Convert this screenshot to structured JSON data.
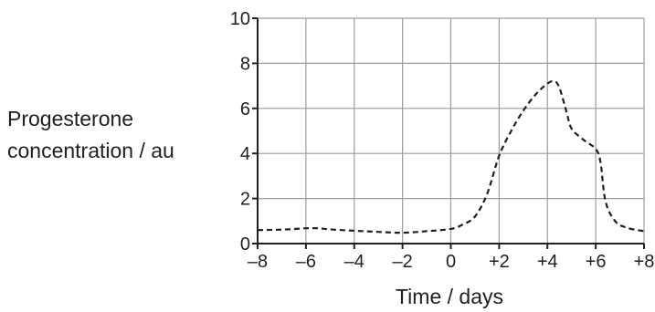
{
  "chart_data": {
    "type": "line",
    "title": "",
    "xlabel": "Time / days",
    "ylabel_lines": [
      "Progesterone",
      "concentration / au"
    ],
    "xlim": [
      -8,
      8
    ],
    "ylim": [
      0,
      10
    ],
    "x_ticks": [
      -8,
      -6,
      -4,
      -2,
      0,
      2,
      4,
      6,
      8
    ],
    "x_tick_labels": [
      "–8",
      "–6",
      "–4",
      "–2",
      "0",
      "+2",
      "+4",
      "+6",
      "+8"
    ],
    "y_ticks": [
      0,
      2,
      4,
      6,
      8,
      10
    ],
    "y_tick_labels": [
      "0",
      "2",
      "4",
      "6",
      "8",
      "10"
    ],
    "grid": true,
    "series": [
      {
        "line_style": "dashed",
        "color": "#231f20",
        "x": [
          -8,
          -7,
          -6,
          -5.5,
          -5,
          -4,
          -3,
          -2,
          -1,
          0,
          0.5,
          1,
          1.5,
          2,
          2.5,
          3,
          3.5,
          4,
          4.3,
          4.5,
          4.8,
          5,
          5.5,
          6,
          6.2,
          6.4,
          6.8,
          7.3,
          8
        ],
        "y": [
          0.6,
          0.62,
          0.68,
          0.68,
          0.63,
          0.57,
          0.52,
          0.48,
          0.55,
          0.65,
          0.85,
          1.2,
          2.2,
          3.9,
          5.0,
          5.9,
          6.6,
          7.1,
          7.2,
          6.9,
          5.8,
          5.1,
          4.6,
          4.2,
          3.6,
          1.9,
          1.0,
          0.7,
          0.55
        ]
      }
    ]
  }
}
